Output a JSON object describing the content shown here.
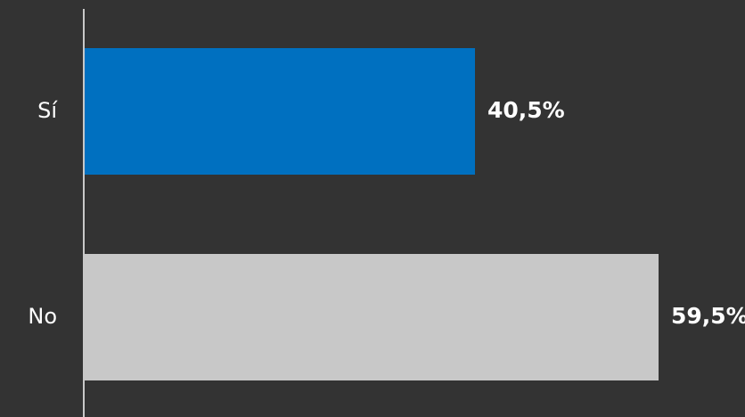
{
  "chart_data": {
    "type": "bar",
    "orientation": "horizontal",
    "categories": [
      "Sí",
      "No"
    ],
    "values": [
      40.5,
      59.5
    ],
    "value_labels": [
      "40,5%",
      "59,5%"
    ],
    "bar_colors": [
      "#0070C0",
      "#C8C8C8"
    ],
    "background_color": "#333333",
    "axis_color": "#C8C8C8",
    "xlim": [
      0,
      59.5
    ],
    "grid": false,
    "title": "",
    "xlabel": "",
    "ylabel": ""
  }
}
